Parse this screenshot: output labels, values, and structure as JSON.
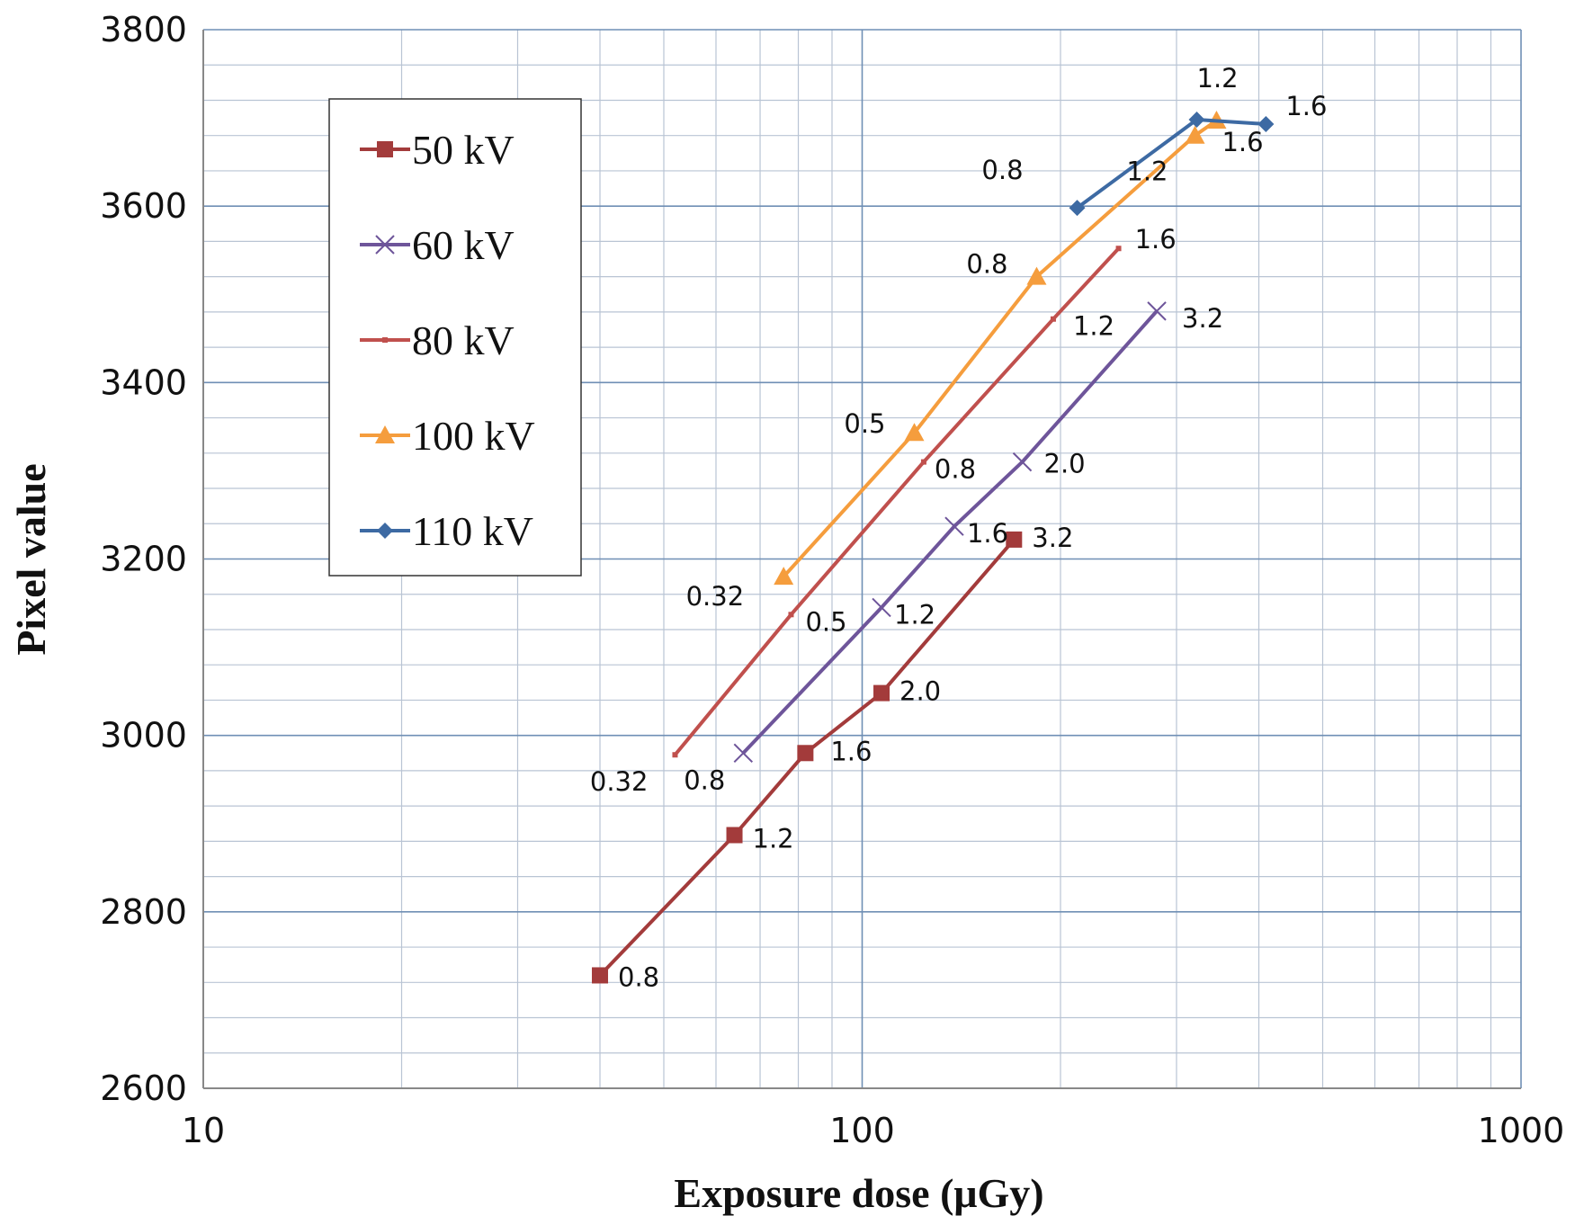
{
  "chart_data": {
    "type": "line",
    "xlabel": "Exposure dose (μGy)",
    "ylabel": "Pixel value",
    "xscale": "log",
    "xlim": [
      10,
      1000
    ],
    "ylim": [
      2600,
      3800
    ],
    "x_ticks": [
      10,
      100,
      1000
    ],
    "y_ticks": [
      2600,
      2800,
      3000,
      3200,
      3400,
      3600,
      3800
    ],
    "grid": true,
    "legend_position": "upper-left",
    "series": [
      {
        "name": "50 kV",
        "color": "#a33b3b",
        "marker": "square",
        "x": [
          40,
          64,
          82,
          107,
          170
        ],
        "y": [
          2728,
          2887,
          2980,
          3048,
          3222
        ],
        "labels": [
          "0.8",
          "1.2",
          "1.6",
          "2.0",
          "3.2"
        ]
      },
      {
        "name": "60 kV",
        "color": "#6e559a",
        "marker": "x",
        "x": [
          66,
          107,
          138,
          175,
          280
        ],
        "y": [
          2980,
          3145,
          3237,
          3310,
          3481
        ],
        "labels": [
          "0.8",
          "1.2",
          "1.6",
          "2.0",
          "3.2"
        ]
      },
      {
        "name": "80 kV",
        "color": "#c0504d",
        "marker": "dash",
        "x": [
          52,
          78,
          124,
          195,
          245
        ],
        "y": [
          2978,
          3137,
          3310,
          3472,
          3552
        ],
        "labels": [
          "0.32",
          "0.5",
          "0.8",
          "1.2",
          "1.6"
        ]
      },
      {
        "name": "100 kV",
        "color": "#f59d3d",
        "marker": "triangle",
        "x": [
          76,
          120,
          184,
          320,
          345
        ],
        "y": [
          3180,
          3343,
          3520,
          3680,
          3697
        ],
        "labels": [
          "0.32",
          "0.5",
          "0.8",
          "1.2",
          "1.6"
        ]
      },
      {
        "name": "110 kV",
        "color": "#3d6aa3",
        "marker": "diamond",
        "x": [
          212,
          322,
          410
        ],
        "y": [
          3598,
          3698,
          3693
        ],
        "labels": [
          "0.8",
          "1.2",
          "1.6"
        ]
      }
    ]
  }
}
